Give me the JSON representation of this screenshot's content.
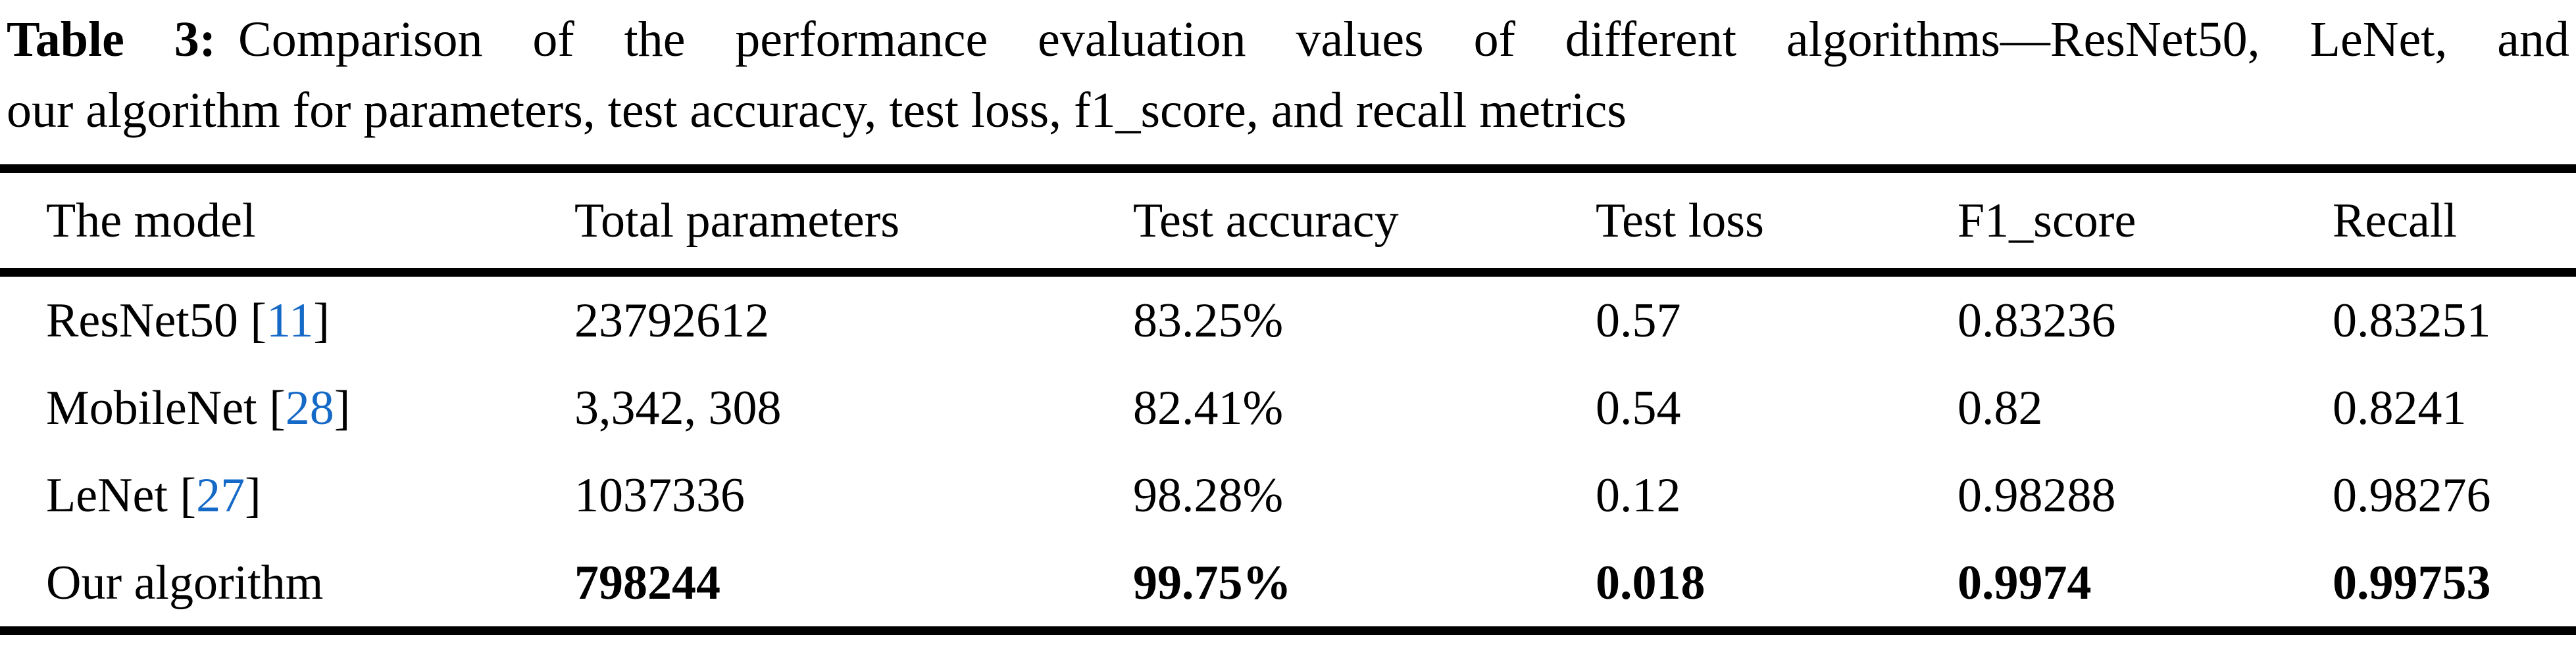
{
  "caption": {
    "label": "Table 3:",
    "line1": "Comparison of the performance evaluation values of different algorithms—ResNet50, LeNet, and",
    "line2": "our algorithm for parameters, test accuracy, test loss, f1_score, and recall metrics"
  },
  "table": {
    "columns": [
      "The model",
      "Total parameters",
      "Test accuracy",
      "Test loss",
      "F1_score",
      "Recall"
    ],
    "cite_open": "[",
    "cite_close": "]",
    "rows": [
      {
        "model": "ResNet50",
        "citation": "11",
        "bold": false,
        "total_parameters": "23792612",
        "test_accuracy": "83.25%",
        "test_loss": "0.57",
        "f1_score": "0.83236",
        "recall": "0.83251"
      },
      {
        "model": "MobileNet",
        "citation": "28",
        "bold": false,
        "total_parameters": "3,342, 308",
        "test_accuracy": "82.41%",
        "test_loss": "0.54",
        "f1_score": "0.82",
        "recall": "0.8241"
      },
      {
        "model": "LeNet",
        "citation": "27",
        "bold": false,
        "total_parameters": "1037336",
        "test_accuracy": "98.28%",
        "test_loss": "0.12",
        "f1_score": "0.98288",
        "recall": "0.98276"
      },
      {
        "model": "Our algorithm",
        "citation": null,
        "bold": true,
        "total_parameters": "798244",
        "test_accuracy": "99.75%",
        "test_loss": "0.018",
        "f1_score": "0.9974",
        "recall": "0.99753"
      }
    ]
  },
  "colors": {
    "text": "#000000",
    "citation_link": "#1569C7",
    "rule": "#000000",
    "background": "#FFFFFF"
  }
}
